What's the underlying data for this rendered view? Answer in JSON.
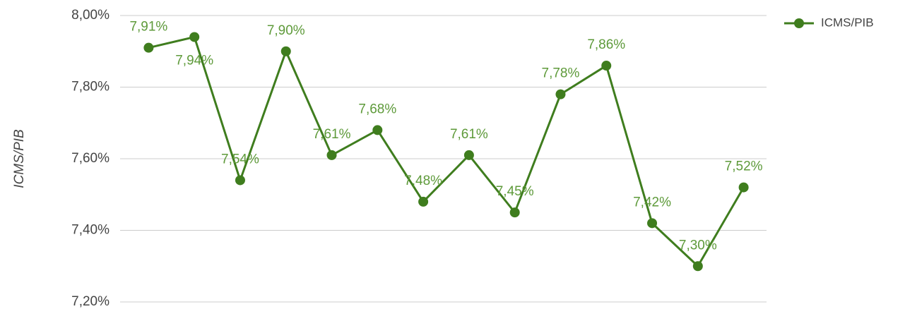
{
  "chart_data": {
    "type": "line",
    "y_label": "ICMS/PIB",
    "categories": [
      null,
      null,
      null,
      null,
      null,
      null,
      null,
      null,
      null,
      null,
      null,
      null,
      null,
      null
    ],
    "series": [
      {
        "name": "ICMS/PIB",
        "color": "#3f7d1e",
        "values": [
          7.91,
          7.94,
          7.54,
          7.9,
          7.61,
          7.68,
          7.48,
          7.61,
          7.45,
          7.78,
          7.86,
          7.42,
          7.3,
          7.52
        ],
        "value_labels": [
          "7,91%",
          "7,94%",
          "7,54%",
          "7,90%",
          "7,61%",
          "7,68%",
          "7,48%",
          "7,61%",
          "7,45%",
          "7,78%",
          "7,86%",
          "7,42%",
          "7,30%",
          "7,52%"
        ]
      }
    ],
    "label_color": "#5e9a3a",
    "ylim": [
      7.2,
      8.0
    ],
    "yticks": [
      {
        "value": 7.2,
        "label": "7,20%"
      },
      {
        "value": 7.4,
        "label": "7,40%"
      },
      {
        "value": 7.6,
        "label": "7,60%"
      },
      {
        "value": 7.8,
        "label": "7,80%"
      },
      {
        "value": 8.0,
        "label": "8,00%"
      }
    ],
    "grid": true,
    "legend": "top-right"
  }
}
